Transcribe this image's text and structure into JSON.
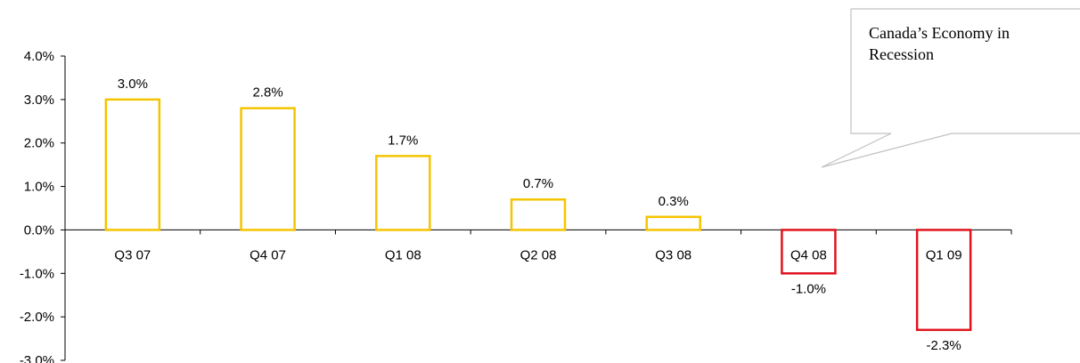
{
  "chart_data": {
    "type": "bar",
    "categories": [
      "Q3 07",
      "Q4 07",
      "Q1 08",
      "Q2 08",
      "Q3 08",
      "Q4 08",
      "Q1 09"
    ],
    "values": [
      3.0,
      2.8,
      1.7,
      0.7,
      0.3,
      -1.0,
      -2.3
    ],
    "data_labels": [
      "3.0%",
      "2.8%",
      "1.7%",
      "0.7%",
      "0.3%",
      "-1.0%",
      "-2.3%"
    ],
    "ylim": [
      -3.0,
      4.0
    ],
    "y_ticks": [
      4.0,
      3.0,
      2.0,
      1.0,
      0.0,
      -1.0,
      -2.0,
      -3.0
    ],
    "y_tick_labels": [
      "4.0%",
      "3.0%",
      "2.0%",
      "1.0%",
      "0.0%",
      "-1.0%",
      "-2.0%",
      "-3.0%"
    ],
    "grid": false,
    "bar_fill": "none",
    "positive_color": "#F5C400",
    "negative_color": "#E0141E",
    "axis_color": "#000000"
  },
  "callout": {
    "text_lines": [
      "Canada’s Economy in",
      "Recession"
    ],
    "border_color": "#C0C0C0"
  }
}
